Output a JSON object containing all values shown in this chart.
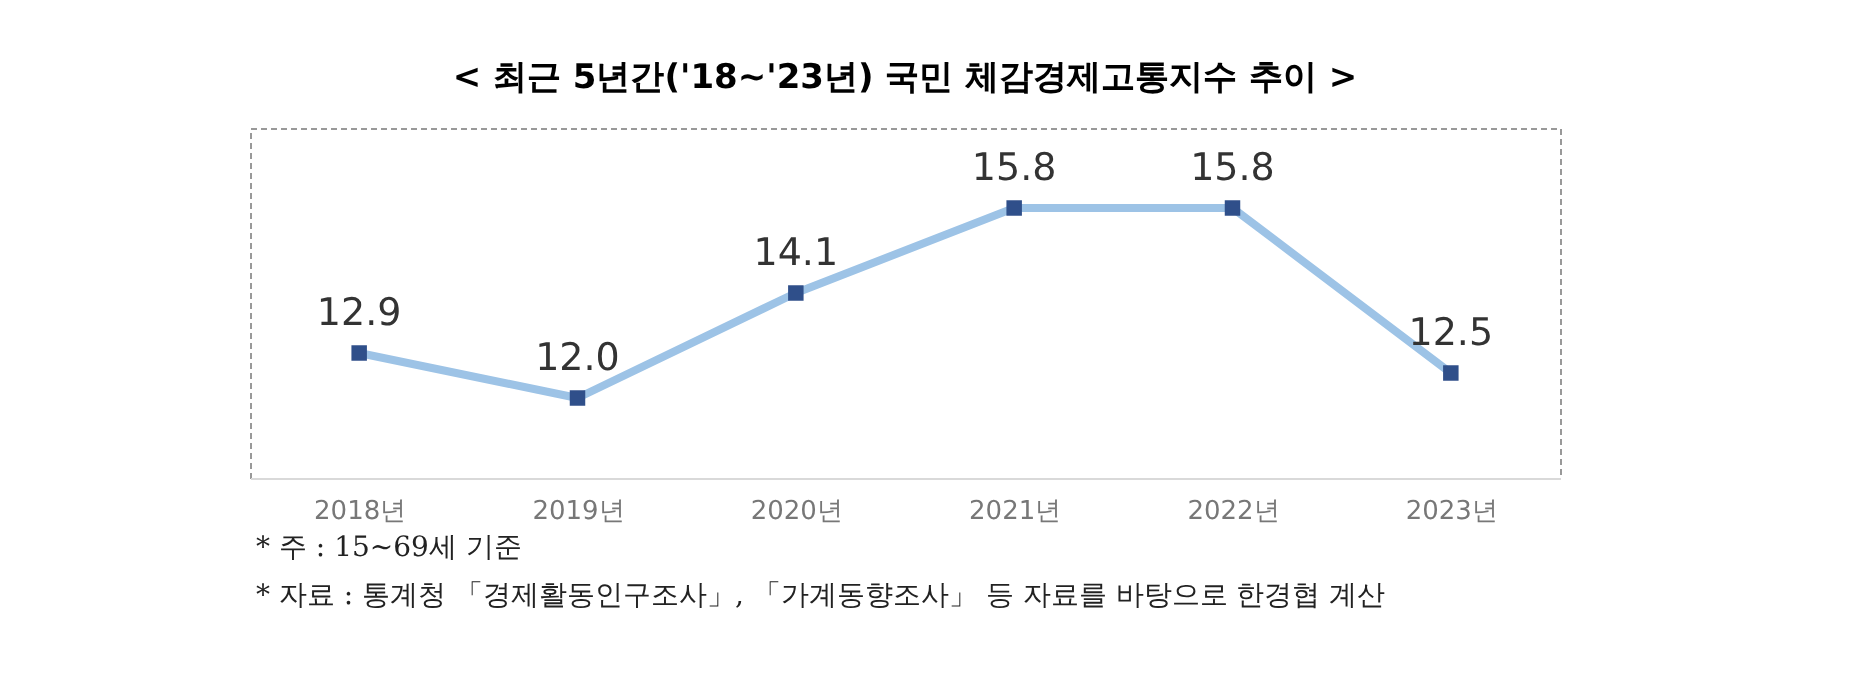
{
  "chart_data": {
    "type": "line",
    "title": "< 최근 5년간('18~'23년) 국민 체감경제고통지수 추이 >",
    "categories": [
      "2018년",
      "2019년",
      "2020년",
      "2021년",
      "2022년",
      "2023년"
    ],
    "series": [
      {
        "color": "#9dc3e6",
        "values": [
          12.9,
          12.0,
          14.1,
          15.8,
          15.8,
          12.5
        ],
        "value_labels": [
          "12.9",
          "12.0",
          "14.1",
          "15.8",
          "15.8",
          "12.5"
        ]
      }
    ],
    "marker": "square",
    "grid": false,
    "legend": false,
    "annotations": [
      "* 주 : 15~69세 기준",
      "* 자료 : 통계청 「경제활동인구조사」, 「가계동향조사」 등 자료를 바탕으로 한경협 계산"
    ]
  }
}
